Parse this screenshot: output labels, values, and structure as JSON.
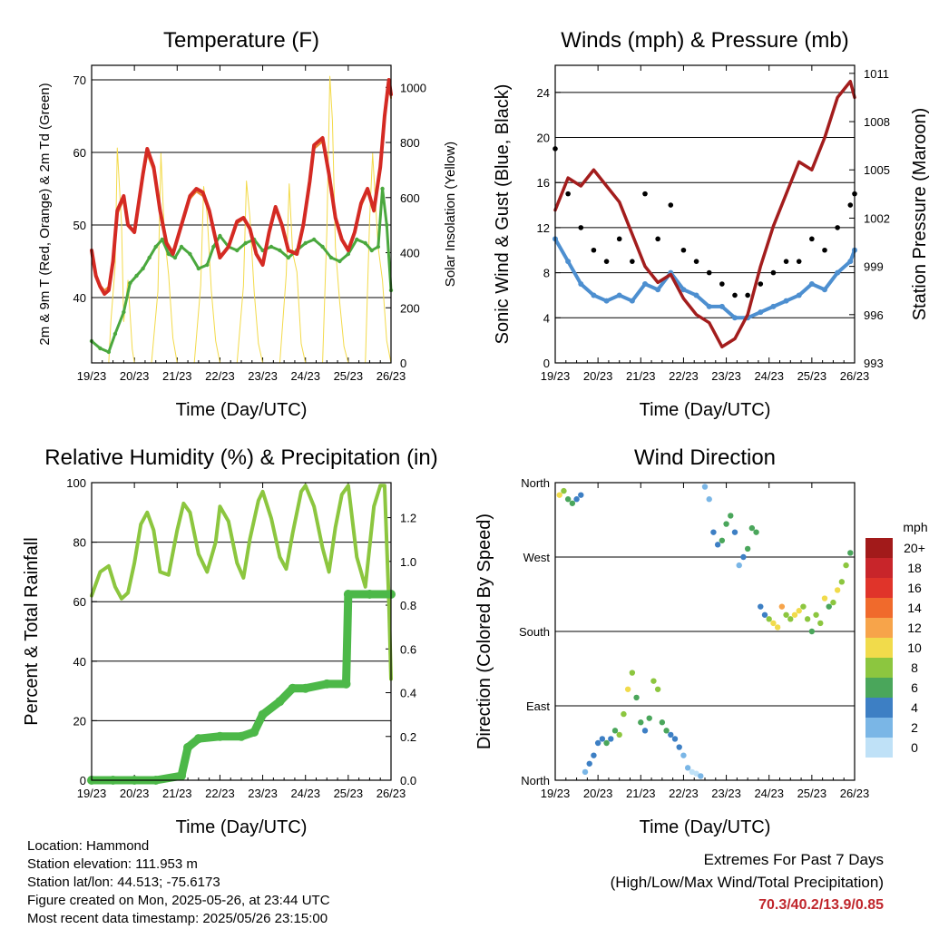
{
  "chart_data": [
    {
      "id": "temperature",
      "type": "line",
      "title": "Temperature (F)",
      "xlabel": "Time (Day/UTC)",
      "ylabel": "2m & 9m T (Red, Orange) & 2m Td (Green)",
      "y2label": "Solar Insolation (Yellow)",
      "x_ticks": [
        "19/23",
        "20/23",
        "21/23",
        "22/23",
        "23/23",
        "24/23",
        "25/23",
        "26/23"
      ],
      "xlim": [
        0,
        7
      ],
      "ylim": [
        31,
        72
      ],
      "yticks": [
        40,
        50,
        60,
        70
      ],
      "y2lim": [
        0,
        1080
      ],
      "y2ticks": [
        0,
        200,
        400,
        600,
        800,
        1000
      ],
      "gridlines": [
        40,
        50,
        60,
        70
      ],
      "series": [
        {
          "name": "2m T",
          "color": "#d42a23",
          "width": 4,
          "x": [
            0,
            0.1,
            0.2,
            0.3,
            0.4,
            0.5,
            0.6,
            0.75,
            0.85,
            1.0,
            1.1,
            1.2,
            1.3,
            1.45,
            1.6,
            1.75,
            1.9,
            2.0,
            2.15,
            2.3,
            2.45,
            2.6,
            2.75,
            2.9,
            3.0,
            3.2,
            3.4,
            3.55,
            3.7,
            3.85,
            4.0,
            4.15,
            4.3,
            4.45,
            4.6,
            4.8,
            4.95,
            5.1,
            5.2,
            5.4,
            5.55,
            5.7,
            5.85,
            6.0,
            6.15,
            6.3,
            6.45,
            6.6,
            6.75,
            6.85,
            6.95,
            7.0
          ],
          "y": [
            46.5,
            43,
            41.5,
            40.5,
            41,
            45,
            52,
            54,
            50,
            49,
            53,
            57,
            60.5,
            58,
            52,
            47.5,
            46,
            48,
            51,
            54,
            55,
            54.5,
            52,
            48,
            45.5,
            47,
            50.5,
            51,
            49.5,
            46,
            44.5,
            49,
            52.5,
            50,
            46.5,
            46,
            50,
            56,
            61,
            62,
            57,
            51,
            48,
            46.5,
            49,
            53,
            55,
            52,
            58,
            65,
            70,
            68
          ]
        },
        {
          "name": "9m T",
          "color": "#e98a2e",
          "width": 2,
          "x": [
            0,
            0.1,
            0.2,
            0.3,
            0.4,
            0.5,
            0.6,
            0.75,
            0.85,
            1.0,
            1.1,
            1.2,
            1.3,
            1.45,
            1.6,
            1.75,
            1.9,
            2.0,
            2.15,
            2.3,
            2.45,
            2.6,
            2.75,
            2.9,
            3.0,
            3.2,
            3.4,
            3.55,
            3.7,
            3.85,
            4.0,
            4.15,
            4.3,
            4.45,
            4.6,
            4.8,
            4.95,
            5.1,
            5.2,
            5.4,
            5.55,
            5.7,
            5.85,
            6.0,
            6.15,
            6.3,
            6.45,
            6.6,
            6.75,
            6.85,
            6.95,
            7.0
          ],
          "y": [
            46.2,
            43,
            41.7,
            41,
            41.5,
            45,
            51.5,
            53.5,
            50,
            49.2,
            52.5,
            56.5,
            59.8,
            57.5,
            52,
            47.8,
            46.3,
            48,
            50.8,
            53.6,
            54.6,
            54,
            51.8,
            48.2,
            45.8,
            47,
            50.2,
            50.8,
            49.4,
            46.2,
            44.8,
            48.8,
            52.2,
            49.8,
            46.6,
            46.2,
            49.8,
            55.5,
            60.5,
            61.5,
            56.8,
            51,
            48.2,
            46.8,
            49,
            52.6,
            54.6,
            51.8,
            57.5,
            64.5,
            69.5,
            67.5
          ]
        },
        {
          "name": "2m Td",
          "color": "#4aa83e",
          "width": 3,
          "x": [
            0,
            0.2,
            0.4,
            0.55,
            0.75,
            0.9,
            1.05,
            1.2,
            1.35,
            1.5,
            1.65,
            1.8,
            1.95,
            2.1,
            2.3,
            2.5,
            2.7,
            2.85,
            3.0,
            3.2,
            3.4,
            3.6,
            3.8,
            4.0,
            4.2,
            4.4,
            4.6,
            4.8,
            5.0,
            5.2,
            5.4,
            5.6,
            5.8,
            6.0,
            6.2,
            6.4,
            6.55,
            6.7,
            6.8,
            6.9,
            7.0
          ],
          "y": [
            34,
            33,
            32.5,
            35,
            38,
            42,
            43,
            44,
            45.5,
            47,
            48,
            46,
            45.5,
            47,
            46,
            44,
            44.5,
            47,
            48.5,
            47,
            46.5,
            47.5,
            48,
            46.5,
            47,
            46.5,
            45.5,
            46.5,
            47.5,
            48,
            47,
            45.5,
            45,
            46,
            48,
            47.5,
            46.5,
            47,
            55,
            50,
            41
          ]
        },
        {
          "name": "Solar Insolation",
          "color": "#f3da4a",
          "width": 1,
          "axis": "y2",
          "x": [
            0,
            0.4,
            0.45,
            0.55,
            0.6,
            0.7,
            0.75,
            0.85,
            0.95,
            1.0,
            1.4,
            1.55,
            1.62,
            1.7,
            1.8,
            1.9,
            2.0,
            2.4,
            2.55,
            2.62,
            2.7,
            2.8,
            2.9,
            3.0,
            3.4,
            3.55,
            3.62,
            3.7,
            3.8,
            3.9,
            4.0,
            4.4,
            4.55,
            4.62,
            4.7,
            4.8,
            4.9,
            5.0,
            5.4,
            5.5,
            5.57,
            5.63,
            5.7,
            5.8,
            5.9,
            6.0,
            6.4,
            6.5,
            6.57,
            6.63,
            6.7,
            6.8,
            6.9,
            7.0
          ],
          "y": [
            0,
            0,
            150,
            350,
            780,
            500,
            150,
            300,
            50,
            0,
            0,
            260,
            760,
            470,
            320,
            90,
            0,
            0,
            280,
            640,
            540,
            260,
            80,
            0,
            0,
            280,
            660,
            530,
            260,
            70,
            0,
            0,
            320,
            650,
            400,
            330,
            70,
            0,
            0,
            480,
            1040,
            880,
            420,
            220,
            60,
            0,
            0,
            520,
            760,
            600,
            420,
            300,
            80,
            0
          ]
        }
      ]
    },
    {
      "id": "winds",
      "type": "scatter",
      "title": "Winds (mph) & Pressure (mb)",
      "xlabel": "Time (Day/UTC)",
      "ylabel": "Sonic Wind & Gust (Blue, Black)",
      "y2label": "Station Pressure (Maroon)",
      "x_ticks": [
        "19/23",
        "20/23",
        "21/23",
        "22/23",
        "23/23",
        "24/23",
        "25/23",
        "26/23"
      ],
      "xlim": [
        0,
        7
      ],
      "ylim": [
        0,
        26.4
      ],
      "yticks": [
        0,
        4,
        8,
        12,
        16,
        20,
        24
      ],
      "y2lim": [
        993,
        1011.5
      ],
      "y2ticks": [
        993,
        996,
        999,
        1002,
        1005,
        1008,
        1011
      ],
      "gridlines": [
        4,
        8,
        12,
        16,
        20,
        24
      ],
      "series": [
        {
          "name": "Sonic Wind",
          "color": "#4d8fd0",
          "x": [
            0,
            0.3,
            0.6,
            0.9,
            1.2,
            1.5,
            1.8,
            2.1,
            2.4,
            2.7,
            3.0,
            3.3,
            3.6,
            3.9,
            4.2,
            4.5,
            4.8,
            5.1,
            5.4,
            5.7,
            6.0,
            6.3,
            6.6,
            6.9,
            7.0
          ],
          "y": [
            11,
            9,
            7,
            6,
            5.5,
            6,
            5.5,
            7,
            6.5,
            8,
            6.5,
            6,
            5,
            5,
            4,
            4,
            4.5,
            5,
            5.5,
            6,
            7,
            6.5,
            8,
            9,
            10
          ]
        },
        {
          "name": "Gust",
          "color": "#000000",
          "x": [
            0,
            0.3,
            0.6,
            0.9,
            1.2,
            1.5,
            1.8,
            2.1,
            2.4,
            2.7,
            3.0,
            3.3,
            3.6,
            3.9,
            4.2,
            4.5,
            4.8,
            5.1,
            5.4,
            5.7,
            6.0,
            6.3,
            6.6,
            6.9,
            7.0
          ],
          "y": [
            19,
            15,
            12,
            10,
            9,
            11,
            9,
            15,
            11,
            14,
            10,
            9,
            8,
            7,
            6,
            6,
            7,
            8,
            9,
            9,
            11,
            10,
            12,
            14,
            15
          ]
        },
        {
          "name": "Station Pressure",
          "color": "#a31d1d",
          "axis": "y2",
          "x": [
            0,
            0.3,
            0.6,
            0.9,
            1.2,
            1.5,
            1.8,
            2.1,
            2.4,
            2.7,
            3.0,
            3.3,
            3.6,
            3.9,
            4.2,
            4.5,
            4.8,
            5.1,
            5.4,
            5.7,
            6.0,
            6.3,
            6.6,
            6.9,
            7.0
          ],
          "y": [
            1002.5,
            1004.5,
            1004,
            1005,
            1004,
            1003,
            1001,
            999,
            998,
            998.5,
            997,
            996,
            995.5,
            994,
            994.5,
            996,
            999,
            1001.5,
            1003.5,
            1005.5,
            1005,
            1007,
            1009.5,
            1010.5,
            1009.5
          ]
        }
      ]
    },
    {
      "id": "humidity",
      "type": "line",
      "title": "Relative Humidity (%) & Precipitation (in)",
      "xlabel": "Time (Day/UTC)",
      "ylabel": "Percent & Total Rainfall",
      "x_ticks": [
        "19/23",
        "20/23",
        "21/23",
        "22/23",
        "23/23",
        "24/23",
        "25/23",
        "26/23"
      ],
      "xlim": [
        0,
        7
      ],
      "ylim": [
        0,
        100
      ],
      "yticks": [
        0,
        20,
        40,
        60,
        80,
        100
      ],
      "y2lim": [
        0,
        1.36
      ],
      "y2ticks": [
        0.0,
        0.2,
        0.4,
        0.6,
        0.8,
        1.0,
        1.2
      ],
      "gridlines": [
        20,
        40,
        60,
        80
      ],
      "series": [
        {
          "name": "Relative Humidity",
          "color": "#8cc63f",
          "width": 4,
          "x": [
            0,
            0.2,
            0.4,
            0.55,
            0.7,
            0.85,
            1.0,
            1.15,
            1.3,
            1.45,
            1.6,
            1.8,
            2.0,
            2.15,
            2.3,
            2.5,
            2.7,
            2.9,
            3.0,
            3.2,
            3.4,
            3.55,
            3.7,
            3.9,
            4.0,
            4.2,
            4.4,
            4.55,
            4.7,
            4.9,
            5.0,
            5.2,
            5.4,
            5.55,
            5.7,
            5.85,
            6.0,
            6.2,
            6.4,
            6.6,
            6.75,
            6.85,
            6.95,
            7.0
          ],
          "y": [
            62,
            70,
            72,
            65,
            61,
            63,
            73,
            86,
            90,
            84,
            70,
            69,
            84,
            93,
            90,
            76,
            70,
            80,
            92,
            87,
            73,
            68,
            81,
            94,
            97,
            88,
            75,
            71,
            83,
            97,
            99,
            92,
            78,
            70,
            85,
            96,
            99,
            75,
            65,
            92,
            99,
            99,
            60,
            34
          ]
        },
        {
          "name": "Total Precipitation",
          "color": "#4cb848",
          "width": 9,
          "axis": "y2",
          "x": [
            0,
            0.5,
            1.0,
            1.5,
            2.1,
            2.25,
            2.5,
            3.0,
            3.5,
            3.8,
            4.0,
            4.4,
            4.7,
            5.0,
            5.5,
            5.95,
            6.0,
            6.5,
            7.0
          ],
          "y": [
            0,
            0,
            0,
            0,
            0.02,
            0.15,
            0.19,
            0.2,
            0.2,
            0.22,
            0.3,
            0.36,
            0.42,
            0.42,
            0.44,
            0.44,
            0.85,
            0.85,
            0.85
          ]
        }
      ]
    },
    {
      "id": "wind-direction",
      "type": "scatter",
      "title": "Wind Direction",
      "xlabel": "Time (Day/UTC)",
      "ylabel": "Direction (Colored By Speed)",
      "x_ticks": [
        "19/23",
        "20/23",
        "21/23",
        "22/23",
        "23/23",
        "24/23",
        "25/23",
        "26/23"
      ],
      "xlim": [
        0,
        7
      ],
      "ylim": [
        0,
        360
      ],
      "y_tick_labels": [
        "North",
        "East",
        "South",
        "West",
        "North"
      ],
      "yticks": [
        0,
        90,
        180,
        270,
        360
      ],
      "x": [
        0.1,
        0.2,
        0.3,
        0.4,
        0.5,
        0.6,
        0.7,
        0.8,
        0.9,
        1.0,
        1.1,
        1.2,
        1.3,
        1.4,
        1.5,
        1.6,
        1.7,
        1.8,
        1.9,
        2.0,
        2.1,
        2.2,
        2.3,
        2.4,
        2.5,
        2.6,
        2.7,
        2.8,
        2.9,
        3.0,
        3.1,
        3.2,
        3.3,
        3.4,
        3.5,
        3.6,
        3.7,
        3.8,
        3.9,
        4.0,
        4.1,
        4.2,
        4.3,
        4.4,
        4.5,
        4.6,
        4.7,
        4.8,
        4.9,
        5.0,
        5.1,
        5.2,
        5.3,
        5.4,
        5.5,
        5.6,
        5.7,
        5.8,
        5.9,
        6.0,
        6.1,
        6.2,
        6.3,
        6.4,
        6.5,
        6.6,
        6.7,
        6.8,
        6.9
      ],
      "y": [
        345,
        350,
        340,
        335,
        340,
        345,
        10,
        20,
        30,
        45,
        50,
        45,
        50,
        60,
        55,
        80,
        110,
        130,
        100,
        70,
        60,
        75,
        120,
        110,
        70,
        60,
        55,
        50,
        40,
        30,
        15,
        10,
        8,
        5,
        355,
        340,
        300,
        285,
        290,
        310,
        320,
        300,
        260,
        270,
        280,
        305,
        300,
        210,
        200,
        195,
        190,
        185,
        210,
        200,
        195,
        200,
        205,
        210,
        195,
        180,
        200,
        190,
        220,
        210,
        215,
        230,
        240,
        260,
        275
      ],
      "speed": [
        10,
        8,
        7,
        6,
        5,
        4,
        3,
        4,
        5,
        4,
        5,
        6,
        5,
        6,
        8,
        9,
        10,
        9,
        7,
        6,
        5,
        6,
        8,
        9,
        7,
        6,
        5,
        4,
        4,
        3,
        2,
        1,
        1,
        2,
        2,
        3,
        4,
        5,
        6,
        7,
        6,
        5,
        3,
        4,
        6,
        7,
        6,
        5,
        4,
        9,
        10,
        11,
        12,
        8,
        9,
        10,
        11,
        9,
        8,
        7,
        8,
        9,
        10,
        7,
        8,
        11,
        9,
        8,
        7
      ],
      "colorbar": {
        "label": "mph",
        "levels": [
          "20+",
          "18",
          "16",
          "14",
          "12",
          "10",
          "8",
          "6",
          "4",
          "2",
          "0"
        ],
        "colors": [
          "#a21a1a",
          "#c8252a",
          "#e0342a",
          "#f06a2c",
          "#f7a44a",
          "#f1db4b",
          "#8cc63f",
          "#4aa65b",
          "#3d7fc4",
          "#7ab6e6",
          "#bfe1f7"
        ]
      }
    }
  ],
  "footer": {
    "location": "Location: Hammond",
    "elevation": "Station elevation: 111.953 m",
    "latlon": "Station lat/lon: 44.513; -75.6173",
    "created": "Figure created on Mon, 2025-05-26, at 23:44 UTC",
    "timestamp": "Most recent data timestamp: 2025/05/26 23:15:00",
    "extremes_title": "Extremes For Past 7 Days",
    "extremes_subtitle": "(High/Low/Max Wind/Total Precipitation)",
    "extremes_value": "70.3/40.2/13.9/0.85"
  }
}
